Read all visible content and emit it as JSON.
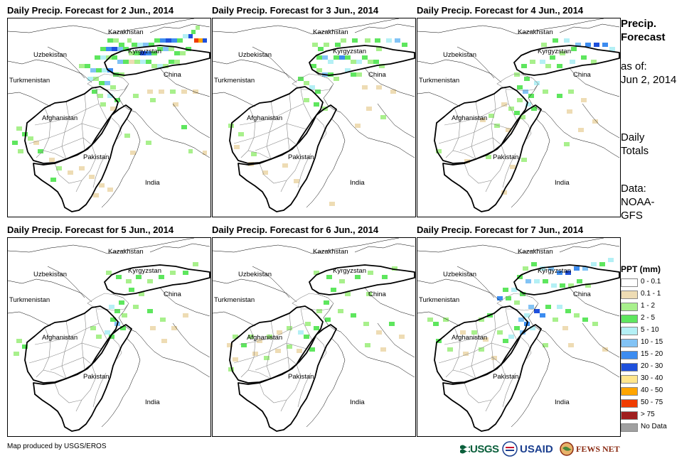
{
  "panels": [
    {
      "title": "Daily Precip. Forecast for 2 Jun., 2014",
      "precip_intensity": "heavy-north"
    },
    {
      "title": "Daily Precip. Forecast for 3 Jun., 2014",
      "precip_intensity": "moderate-north"
    },
    {
      "title": "Daily Precip. Forecast for 4 Jun., 2014",
      "precip_intensity": "moderate-east"
    },
    {
      "title": "Daily Precip. Forecast for 5 Jun., 2014",
      "precip_intensity": "light"
    },
    {
      "title": "Daily Precip. Forecast for 6 Jun., 2014",
      "precip_intensity": "light-central"
    },
    {
      "title": "Daily Precip. Forecast for 7 Jun., 2014",
      "precip_intensity": "heavy-east"
    }
  ],
  "map_labels": {
    "kazakhstan": "Kazakhstan",
    "uzbekistan": "Uzbekistan",
    "kyrgyzstan": "Kyrgyzstan",
    "turkmenistan": "Turkmenistan",
    "china": "China",
    "afghanistan": "Afghanistan",
    "pakistan": "Pakistan",
    "india": "India"
  },
  "sidebar": {
    "title_line1": "Precip.",
    "title_line2": "Forecast",
    "asof_line1": "as of:",
    "asof_line2": "Jun 2, 2014",
    "totals_line1": "Daily",
    "totals_line2": "Totals",
    "data_line1": "Data:",
    "data_line2": "NOAA-",
    "data_line3": "GFS"
  },
  "legend": {
    "title": "PPT (mm)",
    "items": [
      {
        "label": "0 - 0.1",
        "color": "#ffffff"
      },
      {
        "label": "0.1 - 1",
        "color": "#eedcb4"
      },
      {
        "label": "1 - 2",
        "color": "#a8f08c"
      },
      {
        "label": "2 - 5",
        "color": "#5ee65e"
      },
      {
        "label": "5 - 10",
        "color": "#b4f0f5"
      },
      {
        "label": "10 - 15",
        "color": "#82c3f5"
      },
      {
        "label": "15 - 20",
        "color": "#3c8cf0"
      },
      {
        "label": "20 - 30",
        "color": "#1e50dc"
      },
      {
        "label": "30 - 40",
        "color": "#ffe68c"
      },
      {
        "label": "40 - 50",
        "color": "#ffa500"
      },
      {
        "label": "50 - 75",
        "color": "#f03c00"
      },
      {
        "label": "> 75",
        "color": "#a01e1e"
      },
      {
        "label": "No Data",
        "color": "#a0a0a0"
      }
    ]
  },
  "credit": "Map produced by USGS/EROS",
  "logos": {
    "usgs": "USGS",
    "usaid": "USAID",
    "fews": "FEWS NET"
  }
}
